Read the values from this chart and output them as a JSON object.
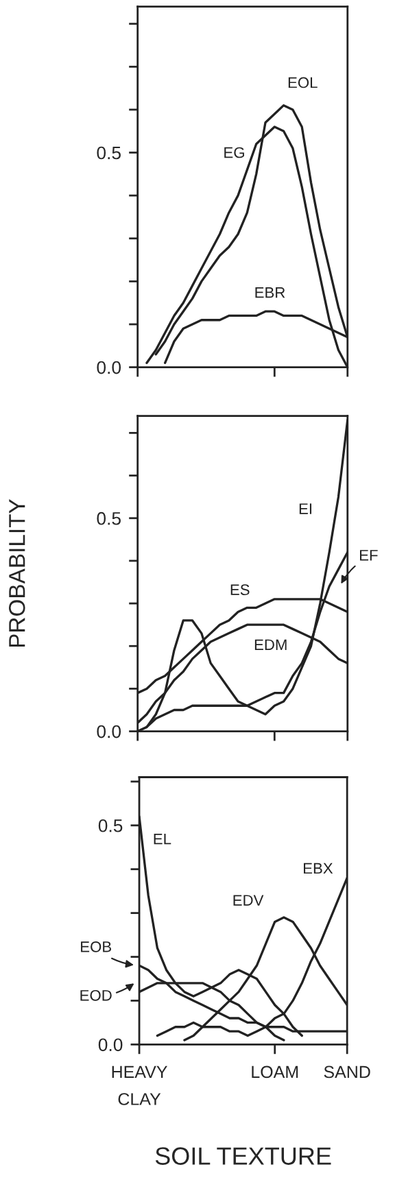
{
  "chart_data": [
    {
      "type": "line",
      "ylim": [
        0,
        0.84
      ],
      "categories": [
        null,
        null,
        null,
        null,
        null,
        null,
        null,
        null,
        null,
        null,
        null,
        null,
        null,
        null,
        null,
        null,
        null,
        null,
        null,
        null,
        null,
        null,
        null,
        null
      ],
      "yticks": [
        {
          "value": 0,
          "label": "0.0"
        },
        {
          "value": 0.1,
          "label": null
        },
        {
          "value": 0.2,
          "label": null
        },
        {
          "value": 0.3,
          "label": null
        },
        {
          "value": 0.4,
          "label": null
        },
        {
          "value": 0.5,
          "label": "0.5"
        },
        {
          "value": 0.6,
          "label": null
        },
        {
          "value": 0.7,
          "label": null
        },
        {
          "value": 0.8,
          "label": null
        }
      ],
      "tick_labels": "y",
      "series": [
        {
          "name": "EOL",
          "color": "#222222",
          "values": [
            null,
            null,
            0.03,
            0.06,
            0.1,
            0.13,
            0.16,
            0.2,
            0.23,
            0.26,
            0.28,
            0.31,
            0.36,
            0.45,
            0.57,
            0.59,
            0.61,
            0.6,
            0.56,
            0.43,
            0.32,
            0.23,
            0.14,
            0.07
          ]
        },
        {
          "name": "EG",
          "color": "#222222",
          "values": [
            null,
            0.01,
            0.04,
            0.08,
            0.12,
            0.15,
            0.19,
            0.23,
            0.27,
            0.31,
            0.36,
            0.4,
            0.46,
            0.52,
            0.54,
            0.56,
            0.55,
            0.51,
            0.42,
            0.31,
            0.21,
            0.11,
            0.04,
            0
          ]
        },
        {
          "name": "EBR",
          "color": "#222222",
          "values": [
            null,
            null,
            null,
            0.01,
            0.06,
            0.09,
            0.1,
            0.11,
            0.11,
            0.11,
            0.12,
            0.12,
            0.12,
            0.12,
            0.13,
            0.13,
            0.12,
            0.12,
            0.12,
            0.11,
            0.1,
            0.09,
            0.08,
            0.07
          ]
        }
      ]
    },
    {
      "type": "line",
      "ylim": [
        0,
        0.74
      ],
      "ylabel": "PROBABILITY",
      "categories": [
        null,
        null,
        null,
        null,
        null,
        null,
        null,
        null,
        null,
        null,
        null,
        null,
        null,
        null,
        null,
        null,
        null,
        null,
        null,
        null,
        null,
        null,
        null,
        null
      ],
      "yticks": [
        {
          "value": 0,
          "label": "0.0"
        },
        {
          "value": 0.1,
          "label": null
        },
        {
          "value": 0.2,
          "label": null
        },
        {
          "value": 0.3,
          "label": null
        },
        {
          "value": 0.4,
          "label": null
        },
        {
          "value": 0.5,
          "label": "0.5"
        },
        {
          "value": 0.6,
          "label": null
        },
        {
          "value": 0.7,
          "label": null
        }
      ],
      "tick_labels": "y",
      "series": [
        {
          "name": "EI",
          "color": "#222222",
          "values": [
            null,
            0.01,
            0.04,
            0.09,
            0.19,
            0.26,
            0.26,
            0.23,
            0.16,
            0.13,
            0.1,
            0.07,
            0.06,
            0.05,
            0.04,
            0.06,
            0.07,
            0.1,
            0.15,
            0.2,
            0.3,
            0.42,
            0.55,
            0.73
          ]
        },
        {
          "name": "EF",
          "color": "#222222",
          "values": [
            0.0,
            0.01,
            0.03,
            0.04,
            0.05,
            0.05,
            0.06,
            0.06,
            0.06,
            0.06,
            0.06,
            0.06,
            0.06,
            0.07,
            0.08,
            0.09,
            0.09,
            0.13,
            0.16,
            0.21,
            0.28,
            0.34,
            0.38,
            0.42
          ]
        },
        {
          "name": "ES",
          "color": "#222222",
          "values": [
            0.09,
            0.1,
            0.12,
            0.13,
            0.15,
            0.17,
            0.19,
            0.21,
            0.23,
            0.25,
            0.26,
            0.28,
            0.29,
            0.29,
            0.3,
            0.31,
            0.31,
            0.31,
            0.31,
            0.31,
            0.31,
            0.3,
            0.29,
            0.28
          ]
        },
        {
          "name": "EDM",
          "color": "#222222",
          "values": [
            0.02,
            0.04,
            0.07,
            0.09,
            0.12,
            0.14,
            0.17,
            0.19,
            0.21,
            0.22,
            0.23,
            0.24,
            0.25,
            0.25,
            0.25,
            0.25,
            0.25,
            0.24,
            0.23,
            0.22,
            0.21,
            0.19,
            0.17,
            0.16
          ]
        }
      ]
    },
    {
      "type": "line",
      "ylim": [
        0,
        0.61
      ],
      "xlabel": "SOIL TEXTURE",
      "categories": [
        "HEAVY\nCLAY",
        null,
        null,
        null,
        null,
        null,
        null,
        null,
        null,
        null,
        null,
        null,
        null,
        null,
        null,
        "LOAM",
        null,
        null,
        null,
        null,
        null,
        null,
        null,
        "SAND"
      ],
      "yticks": [
        {
          "value": 0,
          "label": "0.0"
        },
        {
          "value": 0.1,
          "label": null
        },
        {
          "value": 0.2,
          "label": null
        },
        {
          "value": 0.3,
          "label": null
        },
        {
          "value": 0.4,
          "label": null
        },
        {
          "value": 0.5,
          "label": "0.5"
        },
        {
          "value": 0.6,
          "label": null
        }
      ],
      "series": [
        {
          "name": "EL",
          "color": "#222222",
          "values": [
            0.52,
            0.34,
            0.22,
            0.17,
            0.14,
            0.12,
            0.11,
            0.12,
            0.13,
            0.14,
            0.16,
            0.17,
            0.16,
            0.15,
            0.12,
            0.09,
            0.07,
            0.04,
            0.02,
            null,
            null,
            null,
            null,
            null
          ]
        },
        {
          "name": "EOB",
          "color": "#222222",
          "values": [
            0.18,
            0.17,
            0.15,
            0.14,
            0.12,
            0.11,
            0.1,
            0.09,
            0.08,
            0.07,
            0.06,
            0.06,
            0.05,
            0.05,
            0.04,
            0.04,
            0.04,
            0.03,
            0.03,
            0.03,
            0.03,
            0.03,
            0.03,
            0.03
          ]
        },
        {
          "name": "EOD",
          "color": "#222222",
          "values": [
            0.12,
            0.13,
            0.14,
            0.14,
            0.14,
            0.14,
            0.14,
            0.14,
            0.13,
            0.12,
            0.1,
            0.09,
            0.07,
            0.05,
            0.04,
            0.02,
            0.01,
            null,
            null,
            null,
            null,
            null,
            null,
            null
          ]
        },
        {
          "name": "EDV",
          "color": "#222222",
          "values": [
            null,
            null,
            null,
            null,
            null,
            0.01,
            0.02,
            0.04,
            0.06,
            0.08,
            0.1,
            0.12,
            0.15,
            0.18,
            0.23,
            0.28,
            0.29,
            0.28,
            0.25,
            0.22,
            0.18,
            0.15,
            0.12,
            0.09
          ]
        },
        {
          "name": "EBX",
          "color": "#222222",
          "values": [
            null,
            null,
            0.02,
            0.03,
            0.04,
            0.04,
            0.05,
            0.04,
            0.04,
            0.04,
            0.03,
            0.03,
            0.02,
            0.03,
            0.04,
            0.06,
            0.07,
            0.1,
            0.14,
            0.19,
            0.23,
            0.28,
            0.33,
            0.38
          ]
        }
      ]
    }
  ]
}
